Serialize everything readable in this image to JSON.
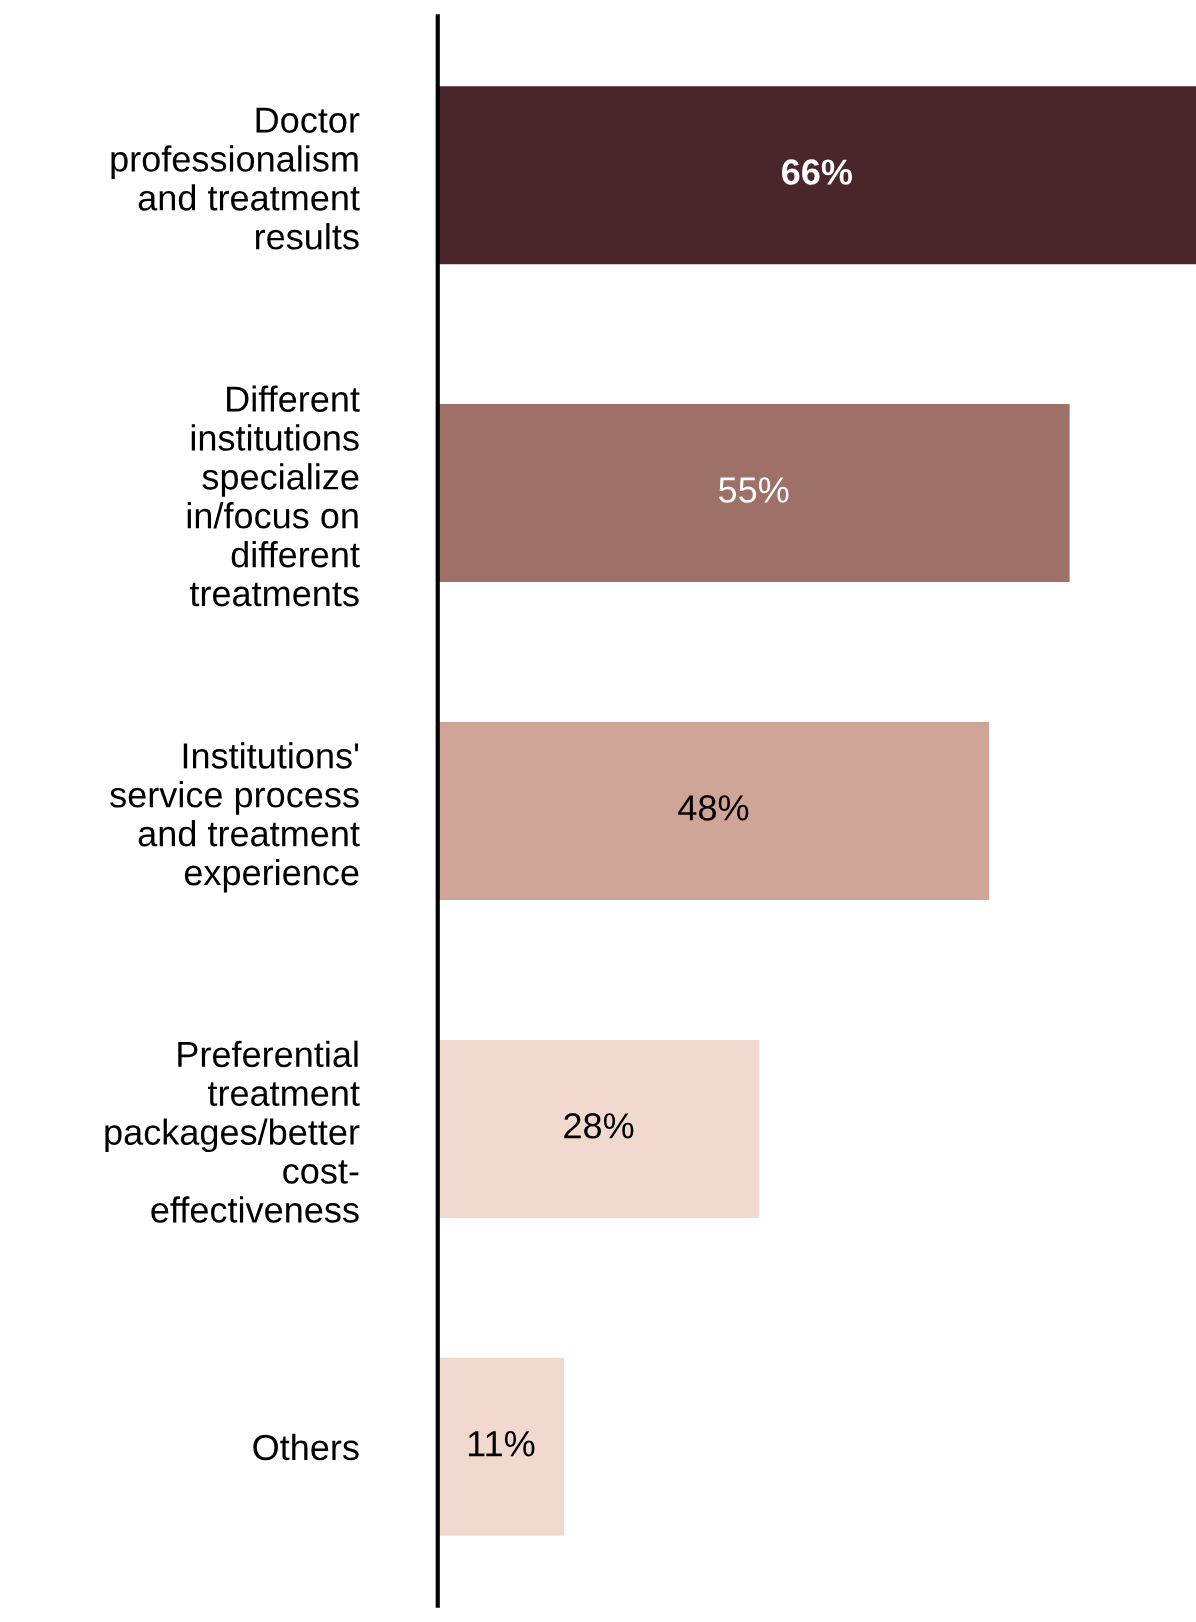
{
  "chart_data": {
    "type": "bar",
    "orientation": "horizontal",
    "categories": [
      "Doctor\nprofessionalism\nand treatment\nresults",
      "Different\ninstitutions\nspecialize\nin/focus on\ndifferent\ntreatments",
      "Institutions'\nservice process\nand treatment\nexperience",
      "Preferential\ntreatment\npackages/better\ncost-\neffectiveness",
      "Others"
    ],
    "values": [
      66,
      55,
      48,
      28,
      11
    ],
    "value_labels": [
      "66%",
      "55%",
      "48%",
      "28%",
      "11%"
    ],
    "colors": [
      "#4a2529",
      "#9e7068",
      "#cfa597",
      "#f2d9d0",
      "#f2d9d0"
    ]
  }
}
